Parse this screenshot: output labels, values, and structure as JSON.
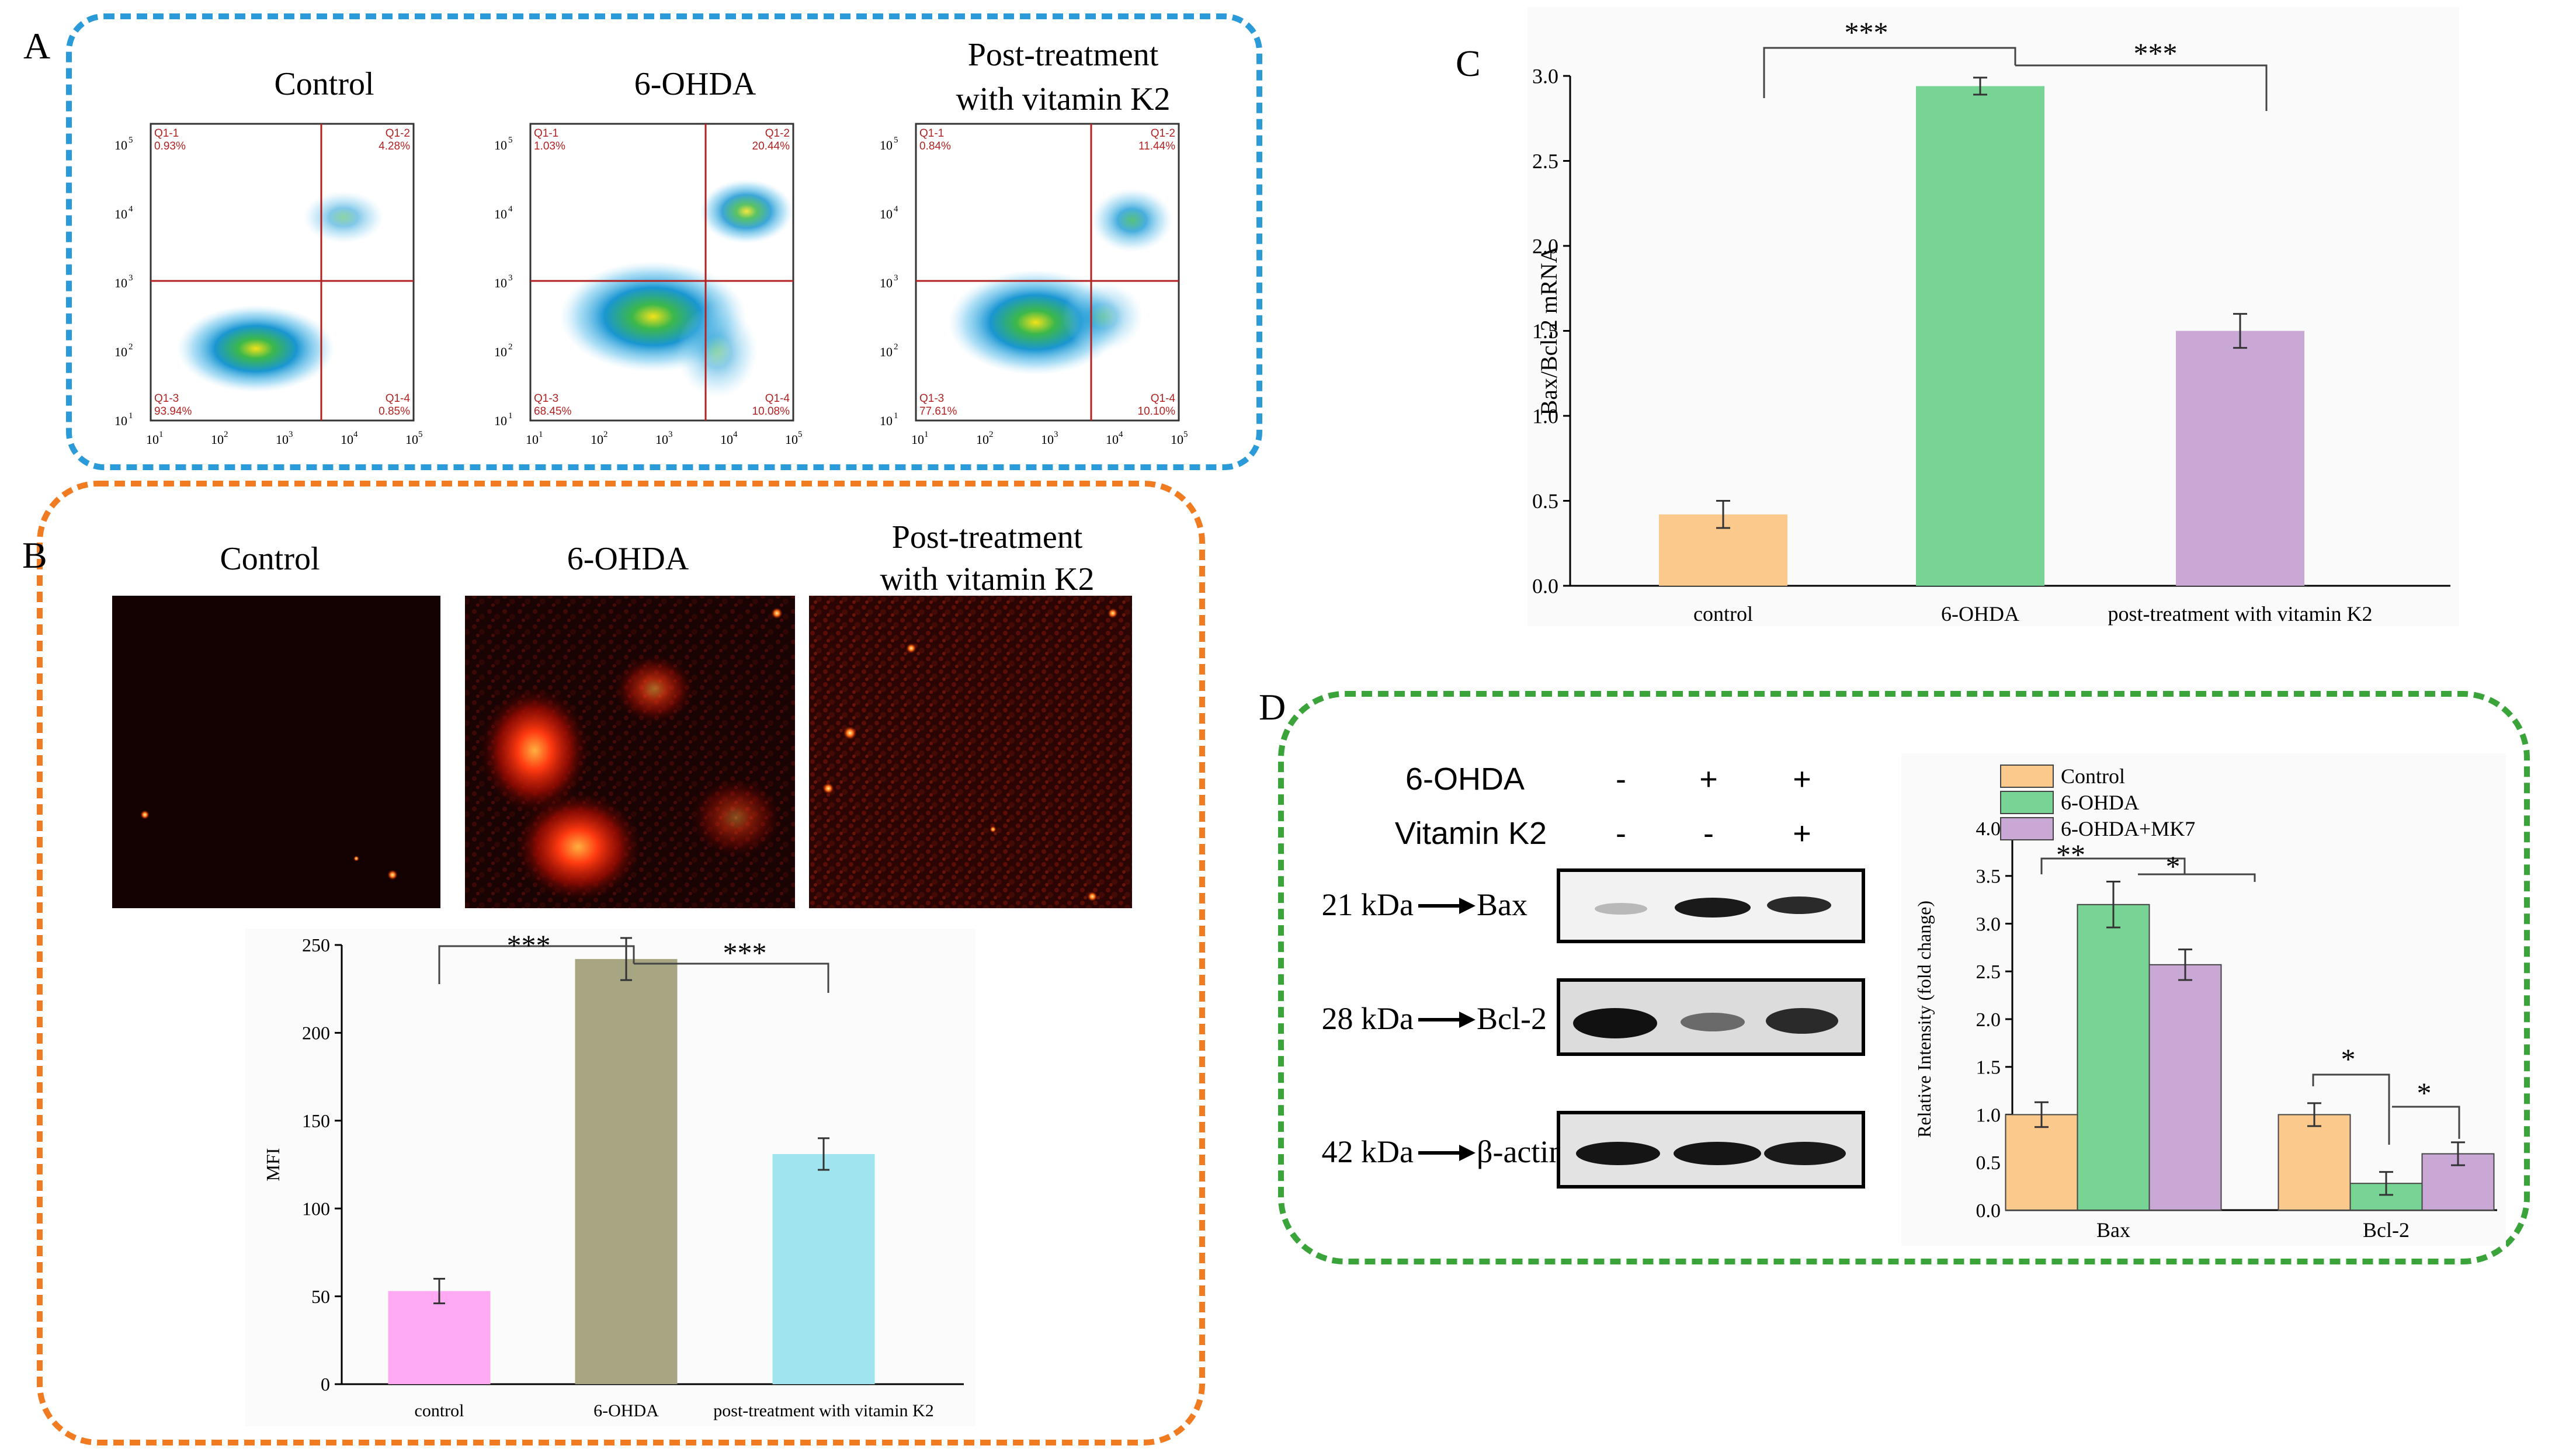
{
  "panels": {
    "A": {
      "letter": "A",
      "groups": [
        {
          "title_lines": [
            "Control"
          ],
          "quadrants": {
            "ul_label": "Q1-1",
            "ul": "0.93%",
            "ur_label": "Q1-2",
            "ur": "4.28%",
            "ll_label": "Q1-3",
            "ll": "93.94%",
            "lr_label": "Q1-4",
            "lr": "0.85%"
          }
        },
        {
          "title_lines": [
            "6-OHDA"
          ],
          "quadrants": {
            "ul_label": "Q1-1",
            "ul": "1.03%",
            "ur_label": "Q1-2",
            "ur": "20.44%",
            "ll_label": "Q1-3",
            "ll": "68.45%",
            "lr_label": "Q1-4",
            "lr": "10.08%"
          }
        },
        {
          "title_lines": [
            "Post-treatment",
            "with vitamin K2"
          ],
          "quadrants": {
            "ul_label": "Q1-1",
            "ul": "0.84%",
            "ur_label": "Q1-2",
            "ur": "11.44%",
            "ll_label": "Q1-3",
            "ll": "77.61%",
            "lr_label": "Q1-4",
            "lr": "10.10%"
          }
        }
      ],
      "axis_ticks": [
        "10",
        "10",
        "10",
        "10",
        "10"
      ],
      "axis_exponents": [
        "1",
        "2",
        "3",
        "4",
        "5"
      ]
    },
    "B": {
      "letter": "B",
      "image_titles": [
        [
          "Control"
        ],
        [
          "6-OHDA"
        ],
        [
          "Post-treatment",
          "with vitamin K2"
        ]
      ]
    },
    "C": {
      "letter": "C"
    },
    "D": {
      "letter": "D",
      "blot": {
        "conditions": [
          {
            "label": "6-OHDA",
            "marks": [
              "-",
              "+",
              "+"
            ]
          },
          {
            "label": "Vitamin K2",
            "marks": [
              "-",
              "-",
              "+"
            ]
          }
        ],
        "bands": [
          {
            "kda": "21 kDa",
            "protein": "Bax"
          },
          {
            "kda": "28 kDa",
            "protein": "Bcl-2"
          },
          {
            "kda": "42 kDa",
            "protein": "β-actin"
          }
        ]
      }
    }
  },
  "colors": {
    "panel_A_border": "#2a9ad8",
    "panel_B_border": "#f07b21",
    "panel_D_border": "#3aa33a",
    "control": "#fcc98c",
    "ohda": "#78d494",
    "vitk2": "#c9a8d6",
    "mfi_control": "#ffaaf2",
    "mfi_ohda": "#a8a682",
    "mfi_vitk2": "#9fe4ee",
    "gate": "#b22222"
  },
  "chart_data": [
    {
      "id": "C",
      "type": "bar",
      "categories": [
        "control",
        "6-OHDA",
        "post-treatment with vitamin K2"
      ],
      "values": [
        0.42,
        2.94,
        1.5
      ],
      "errors": [
        0.08,
        0.05,
        0.1
      ],
      "ylabel": "Bax/Bcl-2 mRNA",
      "ylim": [
        0,
        3.0
      ],
      "yticks": [
        "0.0",
        "0.5",
        "1.0",
        "1.5",
        "2.0",
        "2.5",
        "3.0"
      ],
      "significance": [
        "***",
        "***"
      ]
    },
    {
      "id": "B",
      "type": "bar",
      "categories": [
        "control",
        "6-OHDA",
        "post-treatment with vitamin K2"
      ],
      "values": [
        53,
        242,
        131
      ],
      "errors": [
        7,
        12,
        9
      ],
      "ylabel": "MFI",
      "ylim": [
        0,
        250
      ],
      "yticks": [
        "0",
        "50",
        "100",
        "150",
        "200",
        "250"
      ],
      "significance": [
        "***",
        "***"
      ]
    },
    {
      "id": "D",
      "type": "bar",
      "categories": [
        "Bax",
        "Bcl-2"
      ],
      "series": [
        {
          "name": "Control",
          "values": [
            1.0,
            1.0
          ],
          "errors": [
            0.13,
            0.12
          ]
        },
        {
          "name": "6-OHDA",
          "values": [
            3.2,
            0.28
          ],
          "errors": [
            0.24,
            0.12
          ]
        },
        {
          "name": "6-OHDA+MK7",
          "values": [
            2.57,
            0.59
          ],
          "errors": [
            0.16,
            0.12
          ]
        }
      ],
      "ylabel": "Relative Intensity (fold change)",
      "ylim": [
        0,
        4.0
      ],
      "yticks": [
        "0.0",
        "0.5",
        "1.0",
        "1.5",
        "2.0",
        "2.5",
        "3.0",
        "3.5",
        "4.0"
      ],
      "significance": [
        "**",
        "*",
        "*",
        "*"
      ],
      "legend_position": "top-left"
    }
  ]
}
